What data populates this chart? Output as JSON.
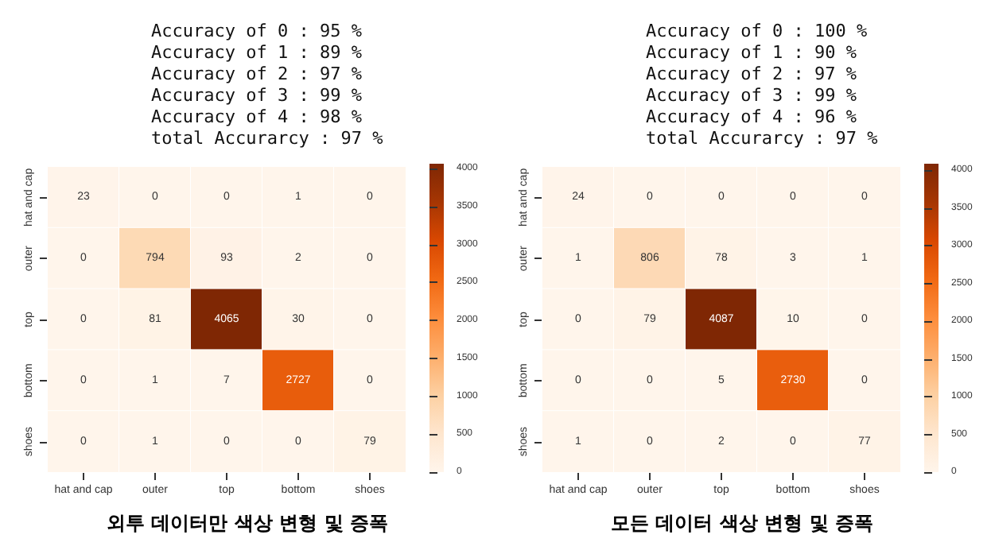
{
  "chart_data": [
    {
      "type": "heatmap",
      "xlabel": "외투 데이터만 색상 변형 및 증폭",
      "annotations": [
        "Accuracy of 0 : 95 %",
        "Accuracy of 1 : 89 %",
        "Accuracy of 2 : 97 %",
        "Accuracy of 3 : 99 %",
        "Accuracy of 4 : 98 %",
        "total Accurarcy : 97 %"
      ],
      "categories": [
        "hat and cap",
        "outer",
        "top",
        "bottom",
        "shoes"
      ],
      "y_categories": [
        "hat and cap",
        "outer",
        "top",
        "bottom",
        "shoes"
      ],
      "cells": [
        [
          23,
          0,
          0,
          1,
          0
        ],
        [
          0,
          794,
          93,
          2,
          0
        ],
        [
          0,
          81,
          4065,
          30,
          0
        ],
        [
          0,
          1,
          7,
          2727,
          0
        ],
        [
          0,
          1,
          0,
          0,
          79
        ]
      ],
      "clim": [
        0,
        4065
      ],
      "cticks": [
        0,
        500,
        1000,
        1500,
        2000,
        2500,
        3000,
        3500,
        4000
      ],
      "data_labels": true
    },
    {
      "type": "heatmap",
      "xlabel": "모든 데이터 색상 변형 및 증폭",
      "annotations": [
        "Accuracy of 0 : 100 %",
        "Accuracy of 1 : 90 %",
        "Accuracy of 2 : 97 %",
        "Accuracy of 3 : 99 %",
        "Accuracy of 4 : 96 %",
        "total Accurarcy : 97 %"
      ],
      "categories": [
        "hat and cap",
        "outer",
        "top",
        "bottom",
        "shoes"
      ],
      "y_categories": [
        "hat and cap",
        "outer",
        "top",
        "bottom",
        "shoes"
      ],
      "cells": [
        [
          24,
          0,
          0,
          0,
          0
        ],
        [
          1,
          806,
          78,
          3,
          1
        ],
        [
          0,
          79,
          4087,
          10,
          0
        ],
        [
          0,
          0,
          5,
          2730,
          0
        ],
        [
          1,
          0,
          2,
          0,
          77
        ]
      ],
      "clim": [
        0,
        4087
      ],
      "cticks": [
        0,
        500,
        1000,
        1500,
        2000,
        2500,
        3000,
        3500,
        4000
      ],
      "data_labels": true
    }
  ]
}
